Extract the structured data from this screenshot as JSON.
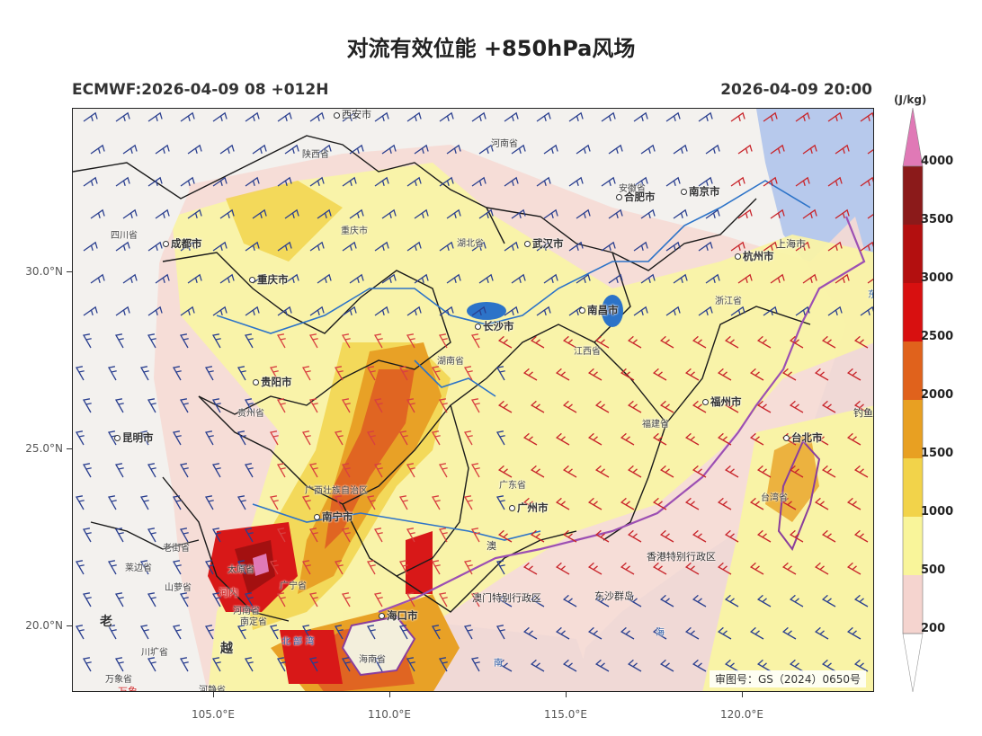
{
  "header": {
    "title": "对流有效位能 +850hPa风场",
    "model_run": "ECMWF:2026-04-09 08 +012H",
    "valid_time": "2026-04-09 20:00"
  },
  "axes": {
    "lat_ticks": [
      "30.0°N",
      "25.0°N",
      "20.0°N"
    ],
    "lon_ticks": [
      "105.0°E",
      "110.0°E",
      "115.0°E",
      "120.0°E"
    ]
  },
  "colorbar": {
    "unit": "(J/kg)",
    "levels": [
      "4000",
      "3500",
      "3000",
      "2500",
      "2000",
      "1500",
      "1000",
      "500",
      "200"
    ],
    "colors": [
      "#e079b6",
      "#8b1a1a",
      "#b30f0f",
      "#d81010",
      "#e0621c",
      "#e8a022",
      "#f2d34a",
      "#f9f59a",
      "#f5d4cf"
    ]
  },
  "places": {
    "xian": "西安市",
    "henan": "河南省",
    "shaanxi": "陕西省",
    "anhui": "安徽省",
    "hefei": "合肥市",
    "nanjing": "南京市",
    "shanghai": "上海市",
    "sichuan": "四川省",
    "chengdu": "成都市",
    "chongqing_label": "重庆市",
    "chongqing": "重庆市",
    "hubei": "湖北省",
    "wuhan": "武汉市",
    "hangzhou": "杭州市",
    "zhejiang": "浙江省",
    "nanchang": "南昌市",
    "changsha": "长沙市",
    "jiangxi": "江西省",
    "hunan": "湖南省",
    "guiyang": "贵阳市",
    "guizhou": "贵州省",
    "fuzhou": "福州市",
    "fujian": "福建省",
    "diaoyu": "钓鱼岛",
    "kunming": "昆明市",
    "taibei": "台北市",
    "taiwan": "台湾省",
    "guangdong": "广东省",
    "guangxi": "广西壮族自治区",
    "guangzhou": "广州市",
    "nanning": "南宁市",
    "hongkong": "香港特别行政区",
    "laojie": "老街省",
    "laicai": "莱边省",
    "shanluo": "山萝省",
    "taiyuan": "太原省",
    "hanoi": "河内",
    "guangning": "广宁省",
    "hainan_vn": "河南省",
    "nanding": "南定省",
    "haikou": "海口市",
    "macau": "澳门特别行政区",
    "dongsha": "东沙群岛",
    "beibu": "北 部 湾",
    "hainan": "海南省",
    "laos": "老",
    "vietnam": "越",
    "chuanguang": "川圹省",
    "wanxiang": "万象省",
    "wanxiang_city": "万象",
    "hejing": "河静省",
    "sea_east": "东",
    "sea_hai": "海",
    "sea_nan": "南",
    "ao_short": "澳"
  },
  "approval": "审图号：GS（2024）0650号"
}
